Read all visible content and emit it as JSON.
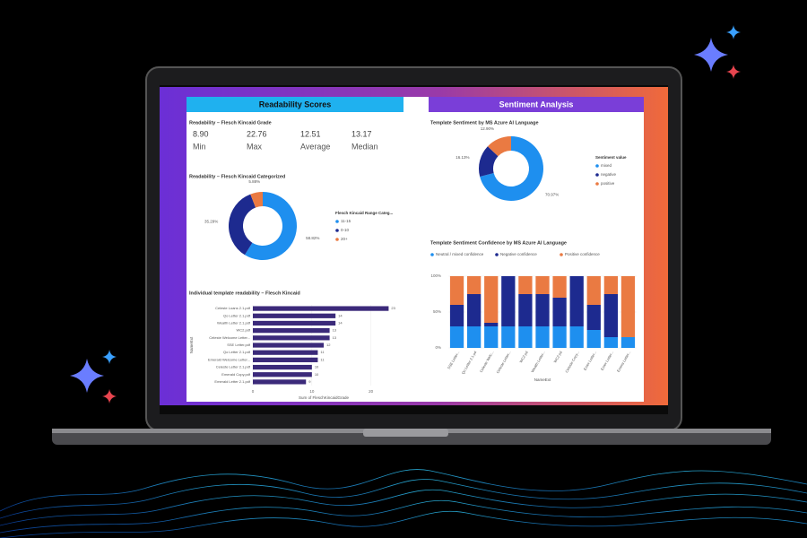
{
  "left_header": "Readability Scores",
  "right_header": "Sentiment Analysis",
  "kpi_card": {
    "title": "Readability – Flesch Kincaid Grade",
    "items": [
      {
        "value": "8.90",
        "label": "Min"
      },
      {
        "value": "22.76",
        "label": "Max"
      },
      {
        "value": "12.51",
        "label": "Average"
      },
      {
        "value": "13.17",
        "label": "Median"
      }
    ]
  },
  "chart_data": [
    {
      "type": "pie",
      "donut": true,
      "title": "Readability – Flesch Kincaid Categorized",
      "legend_title": "Flesch Kincaid Range Categ...",
      "categories": [
        "11-15",
        "0-10",
        "20+"
      ],
      "values": [
        58.82,
        35.29,
        5.88
      ],
      "value_labels": [
        "58.82%",
        "35.29%",
        "5.88%"
      ],
      "colors": [
        "#1e8fef",
        "#1d2a8f",
        "#ea7a42"
      ]
    },
    {
      "type": "bar",
      "orientation": "horizontal",
      "title": "Individual template readability – Flesch Kincaid",
      "categories": [
        "Celeste Loans 2.1.pdf",
        "Qo Letter 2.1.pdf",
        "Wealth Letter 2.1.pdf",
        "WC2.pdf",
        "Celeste Welcome Letter...",
        "SSE Letter.pdf",
        "Qo Letter 2.1.pdf",
        "Emerald Welcome Letter...",
        "Celeste Letter 2.1.pdf",
        "Emerald Copy.pdf",
        "Emerald Letter 2.1.pdf"
      ],
      "values": [
        23,
        14,
        14,
        13,
        13,
        12,
        11,
        11,
        10,
        10,
        9
      ],
      "color": "#3b2a7a",
      "xlim": [
        0,
        24
      ],
      "xticks": [
        0,
        10,
        20
      ],
      "x_label": "Sum of FleschKincaidGrade",
      "y_label": "NameExt"
    },
    {
      "type": "pie",
      "donut": true,
      "title": "Template Sentiment by MS Azure AI Language",
      "legend_title": "Sentiment value",
      "categories": [
        "mixed",
        "negative",
        "positive"
      ],
      "values": [
        70.97,
        16.13,
        12.9
      ],
      "value_labels": [
        "70.97%",
        "16.13%",
        "12.90%"
      ],
      "colors": [
        "#1e8fef",
        "#1d2a8f",
        "#ea7a42"
      ]
    },
    {
      "type": "stacked_bar",
      "title": "Template Sentiment Confidence by MS Azure AI Language",
      "categories": [
        "SSE Letter...",
        "Qo Letter 2.1.pd",
        "Celeste Welc...",
        "Celeste Letter...",
        "WC2.pd",
        "Wealth Letter...",
        "WC2.pd",
        "Celeste Copy...",
        "Emer Letter...",
        "Emer Letter...",
        "Emera Letter..."
      ],
      "series": [
        {
          "name": "Neutral / mixed confidence",
          "color": "#1e8fef",
          "values": [
            30,
            30,
            30,
            30,
            30,
            30,
            30,
            30,
            25,
            15,
            15
          ]
        },
        {
          "name": "Negative confidence",
          "color": "#1d2a8f",
          "values": [
            30,
            45,
            5,
            70,
            45,
            45,
            40,
            70,
            35,
            60,
            0
          ]
        },
        {
          "name": "Positive confidence",
          "color": "#ea7a42",
          "values": [
            40,
            25,
            65,
            0,
            25,
            25,
            30,
            0,
            40,
            25,
            85
          ]
        }
      ],
      "ylim": [
        0,
        100
      ],
      "yticks": [
        {
          "value": 0,
          "label": "0%"
        },
        {
          "value": 50,
          "label": "50%"
        },
        {
          "value": 100,
          "label": "100%"
        }
      ],
      "x_label": "NameExt"
    }
  ]
}
